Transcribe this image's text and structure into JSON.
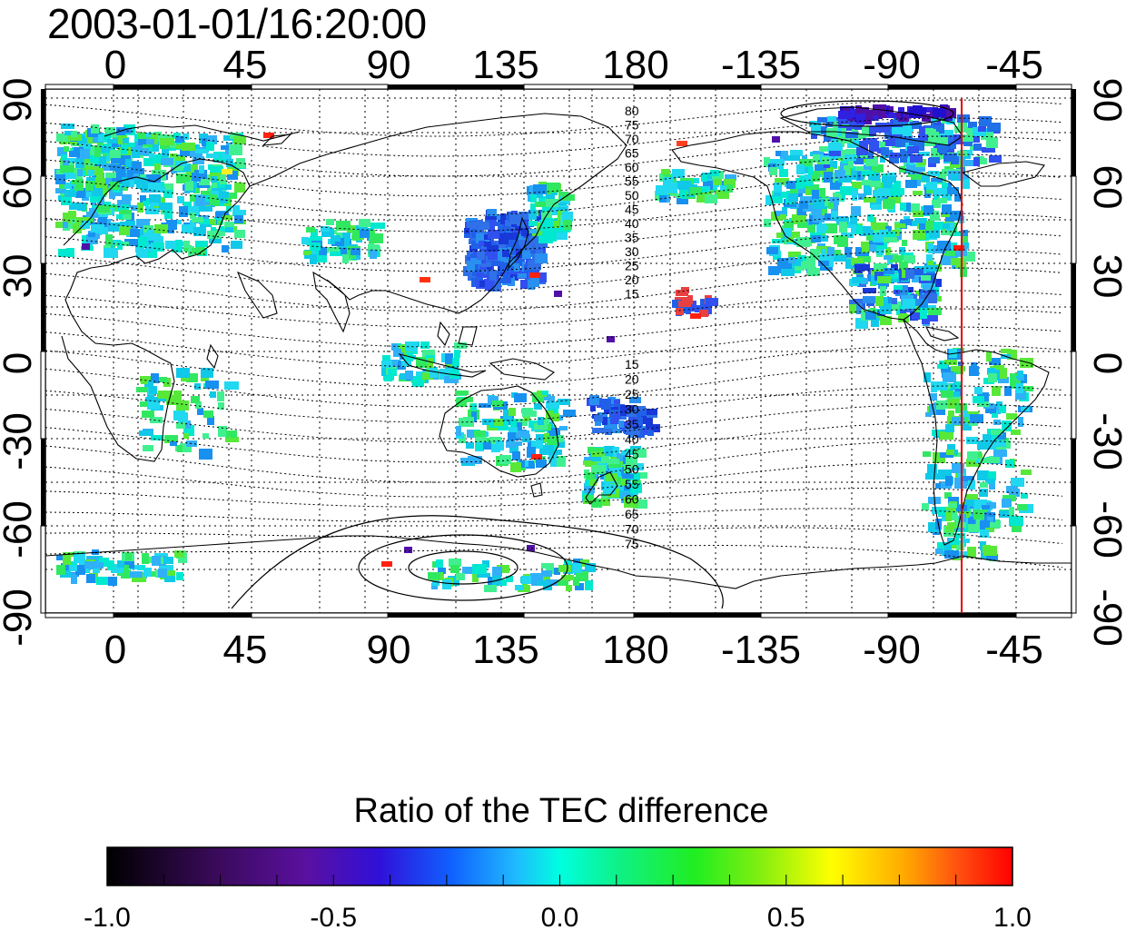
{
  "title": "2003-01-01/16:20:00",
  "map": {
    "lon_top": [
      "0",
      "45",
      "90",
      "135",
      "180",
      "-135",
      "-90",
      "-45"
    ],
    "lon_bottom": [
      "0",
      "45",
      "90",
      "135",
      "180",
      "-135",
      "-90",
      "-45"
    ],
    "lat_left": [
      "90",
      "60",
      "30",
      "0",
      "-30",
      "-60",
      "-90"
    ],
    "lat_right": [
      "90",
      "60",
      "30",
      "0",
      "-30",
      "-60",
      "-90"
    ],
    "contour_labels_north": [
      "80",
      "75",
      "70",
      "65",
      "60",
      "55",
      "50",
      "45",
      "40",
      "35",
      "30",
      "25",
      "20",
      "15"
    ],
    "contour_labels_south": [
      "15",
      "20",
      "25",
      "30",
      "35",
      "40",
      "45",
      "50",
      "55",
      "60",
      "65",
      "70",
      "75"
    ],
    "marker_line_color": "#e00000"
  },
  "colorbar": {
    "title": "Ratio of the TEC difference",
    "ticks": [
      "-1.0",
      "-0.5",
      "0.0",
      "0.5",
      "1.0"
    ],
    "range": [
      -1.0,
      1.0
    ]
  }
}
